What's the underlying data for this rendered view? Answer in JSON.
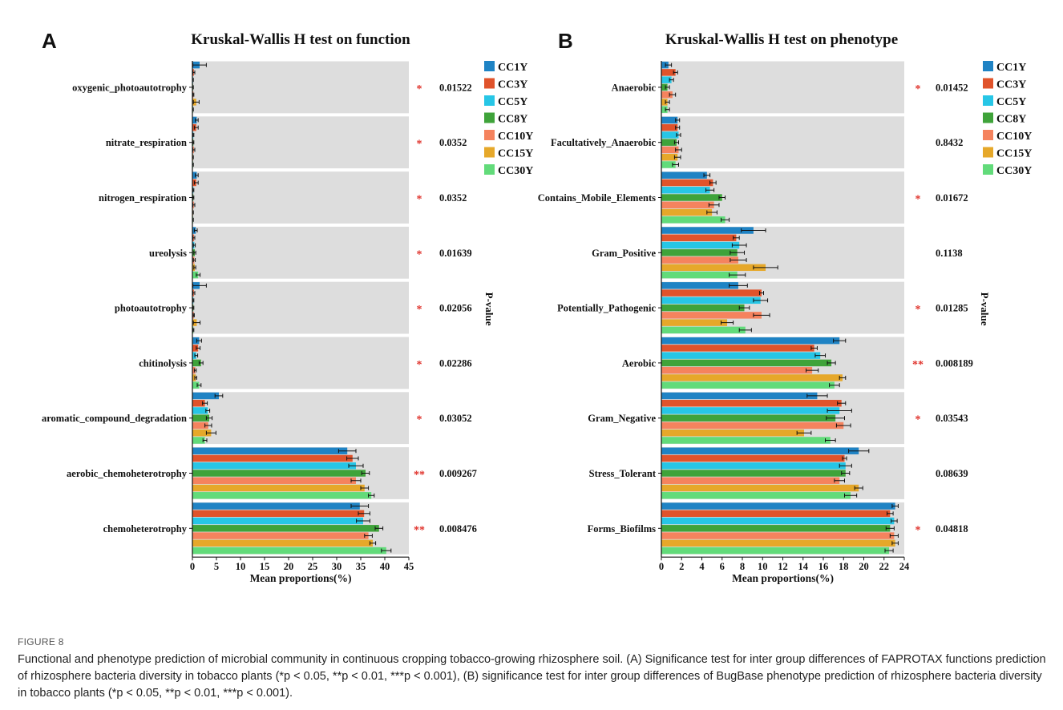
{
  "panels": [
    {
      "letter": "A",
      "title": "Kruskal-Wallis H test on function",
      "xlabel": "Mean proportions(%)",
      "pvalue_label": "P-value"
    },
    {
      "letter": "B",
      "title": "Kruskal-Wallis H test on phenotype",
      "xlabel": "Mean proportions(%)",
      "pvalue_label": "P-value"
    }
  ],
  "colors": {
    "CC1Y": "#1f83c4",
    "CC3Y": "#e0532b",
    "CC5Y": "#27c6e6",
    "CC8Y": "#3fa33a",
    "CC10Y": "#f5835e",
    "CC15Y": "#e6a82a",
    "CC30Y": "#62db7a",
    "significance": "#e0322b",
    "band": "#dddddd"
  },
  "chart_data": [
    {
      "type": "bar",
      "orientation": "horizontal",
      "title": "Kruskal-Wallis H test on function",
      "xlabel": "Mean proportions(%)",
      "xlim": [
        0,
        45
      ],
      "xticks": [
        "0",
        "5",
        "10",
        "15",
        "20",
        "25",
        "30",
        "35",
        "40",
        "45"
      ],
      "legend": [
        "CC1Y",
        "CC3Y",
        "CC5Y",
        "CC8Y",
        "CC10Y",
        "CC15Y",
        "CC30Y"
      ],
      "legend_position": "right",
      "categories": [
        "oxygenic_photoautotrophy",
        "nitrate_respiration",
        "nitrogen_respiration",
        "ureolysis",
        "photoautotrophy",
        "chitinolysis",
        "aromatic_compound_degradation",
        "aerobic_chemoheterotrophy",
        "chemoheterotrophy"
      ],
      "series": [
        {
          "name": "CC1Y",
          "values": [
            1.5,
            0.9,
            0.9,
            0.7,
            1.5,
            1.4,
            5.5,
            32.2,
            34.8
          ],
          "errors": [
            1.4,
            0.3,
            0.3,
            0.3,
            1.4,
            0.5,
            0.8,
            1.8,
            1.8
          ]
        },
        {
          "name": "CC3Y",
          "values": [
            0.3,
            0.8,
            0.8,
            0.3,
            0.3,
            1.2,
            2.6,
            33.3,
            35.7
          ],
          "errors": [
            0.2,
            0.4,
            0.4,
            0.2,
            0.2,
            0.4,
            0.5,
            1.2,
            1.2
          ]
        },
        {
          "name": "CC5Y",
          "values": [
            0.1,
            0.2,
            0.2,
            0.4,
            0.2,
            0.8,
            3.2,
            34.0,
            35.5
          ],
          "errors": [
            0.1,
            0.1,
            0.1,
            0.2,
            0.1,
            0.3,
            0.4,
            1.5,
            1.4
          ]
        },
        {
          "name": "CC8Y",
          "values": [
            0.1,
            0.2,
            0.2,
            0.5,
            0.2,
            1.8,
            3.5,
            36.0,
            38.8
          ],
          "errors": [
            0.1,
            0.1,
            0.1,
            0.2,
            0.1,
            0.4,
            0.6,
            0.8,
            0.8
          ]
        },
        {
          "name": "CC10Y",
          "values": [
            0.2,
            0.3,
            0.3,
            0.4,
            0.3,
            0.6,
            3.3,
            34.0,
            36.6
          ],
          "errors": [
            0.1,
            0.2,
            0.2,
            0.2,
            0.1,
            0.2,
            0.7,
            1.0,
            0.8
          ]
        },
        {
          "name": "CC15Y",
          "values": [
            0.8,
            0.1,
            0.1,
            0.5,
            0.9,
            0.7,
            3.9,
            35.8,
            37.5
          ],
          "errors": [
            0.6,
            0.1,
            0.1,
            0.2,
            0.7,
            0.2,
            1.0,
            0.8,
            0.6
          ]
        },
        {
          "name": "CC30Y",
          "values": [
            0.1,
            0.1,
            0.1,
            1.2,
            0.2,
            1.4,
            2.6,
            37.2,
            40.3
          ],
          "errors": [
            0.1,
            0.1,
            0.1,
            0.4,
            0.1,
            0.4,
            0.4,
            0.6,
            1.0
          ]
        }
      ],
      "significance": [
        "*",
        "*",
        "*",
        "*",
        "*",
        "*",
        "*",
        "**",
        "**"
      ],
      "pvalues": [
        "0.01522",
        "0.0352",
        "0.0352",
        "0.01639",
        "0.02056",
        "0.02286",
        "0.03052",
        "0.009267",
        "0.008476"
      ],
      "pvalue_label": "P-value"
    },
    {
      "type": "bar",
      "orientation": "horizontal",
      "title": "Kruskal-Wallis H test on phenotype",
      "xlabel": "Mean proportions(%)",
      "xlim": [
        0,
        24
      ],
      "xticks": [
        "0",
        "2",
        "4",
        "6",
        "8",
        "10",
        "12",
        "14",
        "16",
        "18",
        "20",
        "22",
        "24"
      ],
      "legend": [
        "CC1Y",
        "CC3Y",
        "CC5Y",
        "CC8Y",
        "CC10Y",
        "CC15Y",
        "CC30Y"
      ],
      "legend_position": "right",
      "categories": [
        "Anaerobic",
        "Facultatively_Anaerobic",
        "Contains_Mobile_Elements",
        "Gram_Positive",
        "Potentially_Pathogenic",
        "Aerobic",
        "Gram_Negative",
        "Stress_Tolerant",
        "Forms_Biofilms"
      ],
      "series": [
        {
          "name": "CC1Y",
          "values": [
            0.7,
            1.6,
            4.5,
            9.1,
            7.6,
            17.6,
            15.4,
            19.5,
            23.1
          ],
          "errors": [
            0.3,
            0.2,
            0.3,
            1.2,
            0.9,
            0.6,
            1.0,
            1.0,
            0.3
          ]
        },
        {
          "name": "CC3Y",
          "values": [
            1.4,
            1.6,
            5.1,
            7.4,
            9.9,
            15.1,
            17.8,
            18.1,
            22.6
          ],
          "errors": [
            0.2,
            0.2,
            0.3,
            0.3,
            0.2,
            0.3,
            0.4,
            0.2,
            0.3
          ]
        },
        {
          "name": "CC5Y",
          "values": [
            1.0,
            1.7,
            4.8,
            7.7,
            9.8,
            15.7,
            17.6,
            18.2,
            23.0
          ],
          "errors": [
            0.2,
            0.2,
            0.4,
            0.7,
            0.7,
            0.5,
            1.2,
            0.6,
            0.3
          ]
        },
        {
          "name": "CC8Y",
          "values": [
            0.6,
            1.5,
            6.0,
            7.5,
            8.2,
            16.8,
            17.2,
            18.2,
            22.6
          ],
          "errors": [
            0.2,
            0.2,
            0.3,
            0.7,
            0.5,
            0.4,
            0.9,
            0.4,
            0.4
          ]
        },
        {
          "name": "CC10Y",
          "values": [
            1.1,
            1.7,
            5.2,
            7.6,
            9.9,
            14.9,
            18.0,
            17.6,
            23.0
          ],
          "errors": [
            0.3,
            0.3,
            0.5,
            0.8,
            0.8,
            0.6,
            0.7,
            0.5,
            0.4
          ]
        },
        {
          "name": "CC15Y",
          "values": [
            0.6,
            1.6,
            5.0,
            10.3,
            6.5,
            17.9,
            14.1,
            19.5,
            23.1
          ],
          "errors": [
            0.2,
            0.3,
            0.5,
            1.2,
            0.6,
            0.3,
            0.7,
            0.4,
            0.3
          ]
        },
        {
          "name": "CC30Y",
          "values": [
            0.6,
            1.4,
            6.3,
            7.5,
            8.3,
            17.1,
            16.7,
            18.7,
            22.5
          ],
          "errors": [
            0.2,
            0.3,
            0.4,
            0.8,
            0.6,
            0.5,
            0.5,
            0.6,
            0.4
          ]
        }
      ],
      "significance": [
        "*",
        "",
        "*",
        "",
        "*",
        "**",
        "*",
        "",
        "*"
      ],
      "pvalues": [
        "0.01452",
        "0.8432",
        "0.01672",
        "0.1138",
        "0.01285",
        "0.008189",
        "0.03543",
        "0.08639",
        "0.04818"
      ],
      "pvalue_label": "P-value"
    }
  ],
  "caption": {
    "label": "FIGURE 8",
    "text": "Functional and phenotype prediction of microbial community in continuous cropping tobacco-growing rhizosphere soil. (A) Significance test for inter group differences of FAPROTAX functions prediction of rhizosphere bacteria diversity in tobacco plants (*p < 0.05, **p < 0.01, ***p < 0.001), (B) significance test for inter group differences of BugBase phenotype prediction of rhizosphere bacteria diversity in tobacco plants (*p < 0.05, **p < 0.01, ***p < 0.001)."
  }
}
